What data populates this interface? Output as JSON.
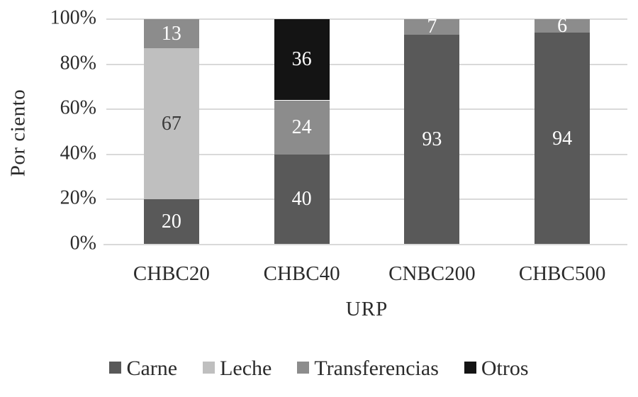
{
  "figure": {
    "background": "#ffffff",
    "text_color": "#2b2b2b",
    "gridline_color": "#d9d9d9"
  },
  "chart_data": {
    "type": "bar",
    "subtype": "stacked-100-percent",
    "title": "",
    "xlabel": "URP",
    "ylabel": "Por ciento",
    "categories": [
      "CHBC20",
      "CHBC40",
      "CNBC200",
      "CHBC500"
    ],
    "series": [
      {
        "name": "Carne",
        "color": "#595959",
        "label_color": "#ffffff",
        "values": [
          20,
          40,
          93,
          94
        ]
      },
      {
        "name": "Leche",
        "color": "#bfbfbf",
        "label_color": "#3b3b3b",
        "values": [
          67,
          0,
          0,
          0
        ]
      },
      {
        "name": "Transferencias",
        "color": "#8c8c8c",
        "label_color": "#ffffff",
        "values": [
          13,
          24,
          7,
          6
        ]
      },
      {
        "name": "Otros",
        "color": "#141414",
        "label_color": "#ffffff",
        "values": [
          0,
          36,
          0,
          0
        ]
      }
    ],
    "y_ticks": [
      "0%",
      "20%",
      "40%",
      "60%",
      "80%",
      "100%"
    ],
    "ylim": [
      0,
      100
    ],
    "grid": true,
    "legend_position": "bottom"
  }
}
